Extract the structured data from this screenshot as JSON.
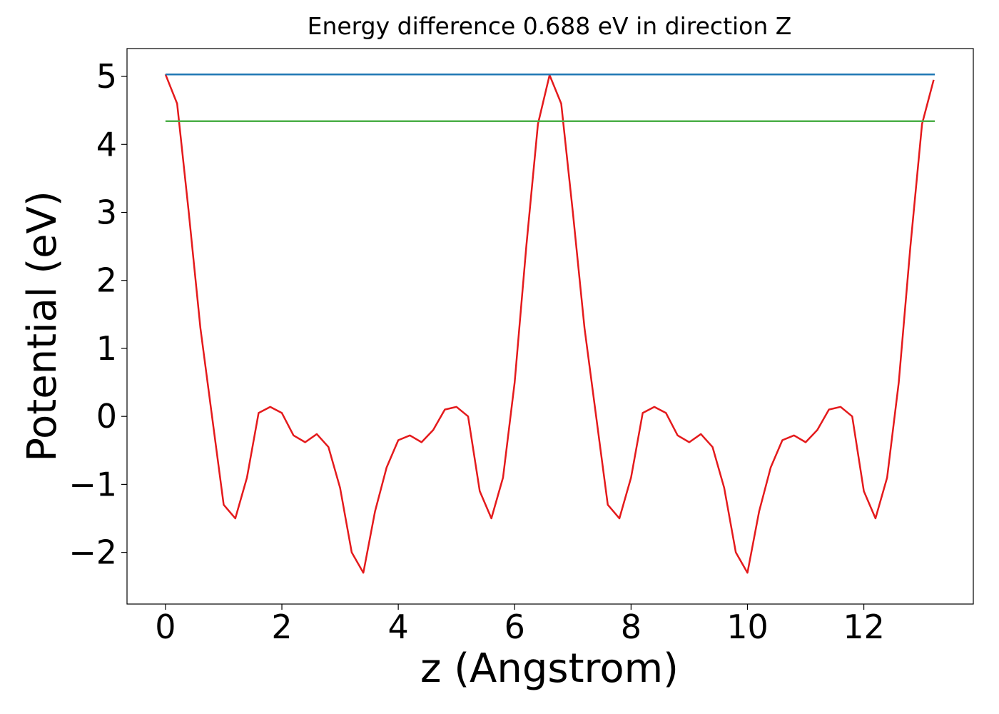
{
  "chart_data": {
    "type": "line",
    "title": "Energy difference 0.688 eV in direction Z",
    "x_label": "z (Angstrom)",
    "y_label": "Potential (eV)",
    "xlim": [
      -0.661,
      13.881
    ],
    "ylim": [
      -2.76,
      5.41
    ],
    "xticks": [
      0,
      2,
      4,
      6,
      8,
      10,
      12
    ],
    "yticks": [
      {
        "value": -2,
        "label": "−2"
      },
      {
        "value": -1,
        "label": "−1"
      },
      0,
      1,
      2,
      3,
      4,
      5
    ],
    "grid": false,
    "series": [
      {
        "color": "#e41a1c",
        "x": [
          0,
          0.2,
          0.4,
          0.6,
          0.8,
          1.0,
          1.2,
          1.4,
          1.6,
          1.8,
          2.0,
          2.2,
          2.4,
          2.6,
          2.8,
          3.0,
          3.2,
          3.4,
          3.6,
          3.8,
          4.0,
          4.2,
          4.4,
          4.6,
          4.8,
          5.0,
          5.2,
          5.4,
          5.6,
          5.8,
          6.0,
          6.2,
          6.4,
          6.6,
          6.8,
          7.0,
          7.2,
          7.4,
          7.6,
          7.8,
          8.0,
          8.2,
          8.4,
          8.6,
          8.8,
          9.0,
          9.2,
          9.4,
          9.6,
          9.8,
          10.0,
          10.2,
          10.4,
          10.6,
          10.8,
          11.0,
          11.2,
          11.4,
          11.6,
          11.8,
          12.0,
          12.2,
          12.4,
          12.6,
          12.8,
          13.0,
          13.2
        ],
        "values": [
          5.03,
          4.6,
          3.0,
          1.3,
          0.0,
          -1.3,
          -1.5,
          -0.9,
          0.05,
          0.14,
          0.05,
          -0.28,
          -0.38,
          -0.26,
          -0.45,
          -1.05,
          -2.0,
          -2.3,
          -1.4,
          -0.75,
          -0.35,
          -0.28,
          -0.38,
          -0.2,
          0.1,
          0.14,
          0.0,
          -1.1,
          -1.5,
          -0.9,
          0.5,
          2.5,
          4.3,
          5.02,
          4.6,
          3.0,
          1.3,
          0.0,
          -1.3,
          -1.5,
          -0.9,
          0.05,
          0.14,
          0.05,
          -0.28,
          -0.38,
          -0.26,
          -0.45,
          -1.05,
          -2.0,
          -2.3,
          -1.4,
          -0.75,
          -0.35,
          -0.28,
          -0.38,
          -0.2,
          0.1,
          0.14,
          0.0,
          -1.1,
          -1.5,
          -0.9,
          0.5,
          2.5,
          4.3,
          4.95
        ]
      },
      {
        "color": "#1f77b4",
        "x": [
          0,
          13.22
        ],
        "values": [
          5.03,
          5.03
        ]
      },
      {
        "color": "#4daf4a",
        "x": [
          0,
          13.22
        ],
        "values": [
          4.342,
          4.342
        ]
      }
    ]
  }
}
